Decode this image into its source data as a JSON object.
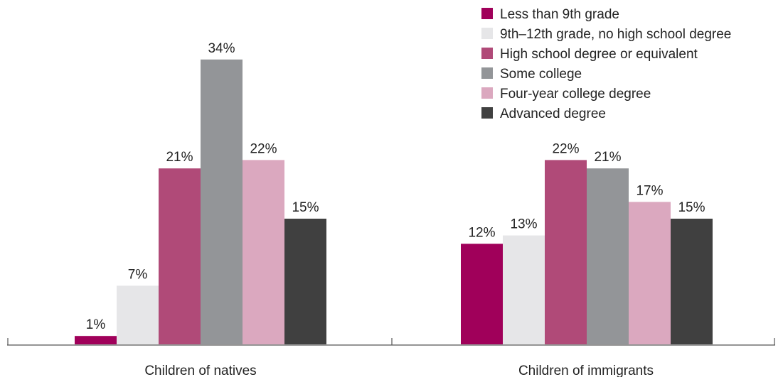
{
  "chart_data": {
    "type": "bar",
    "categories": [
      "Children of natives",
      "Children of immigrants"
    ],
    "series": [
      {
        "name": "Less than 9th grade",
        "color": "#a0005a",
        "values": [
          1,
          12
        ]
      },
      {
        "name": "9th–12th grade, no high school degree",
        "color": "#e6e6e8",
        "values": [
          7,
          13
        ]
      },
      {
        "name": "High school degree or equivalent",
        "color": "#b04a78",
        "values": [
          21,
          22
        ]
      },
      {
        "name": "Some college",
        "color": "#939598",
        "values": [
          34,
          21
        ]
      },
      {
        "name": "Four-year college degree",
        "color": "#dba8bf",
        "values": [
          22,
          17
        ]
      },
      {
        "name": "Advanced degree",
        "color": "#404040",
        "values": [
          15,
          15
        ]
      }
    ],
    "value_suffix": "%",
    "ylim": [
      0,
      34
    ],
    "grid": false,
    "legend_position": "top-right",
    "title": "",
    "xlabel": "",
    "ylabel": ""
  }
}
